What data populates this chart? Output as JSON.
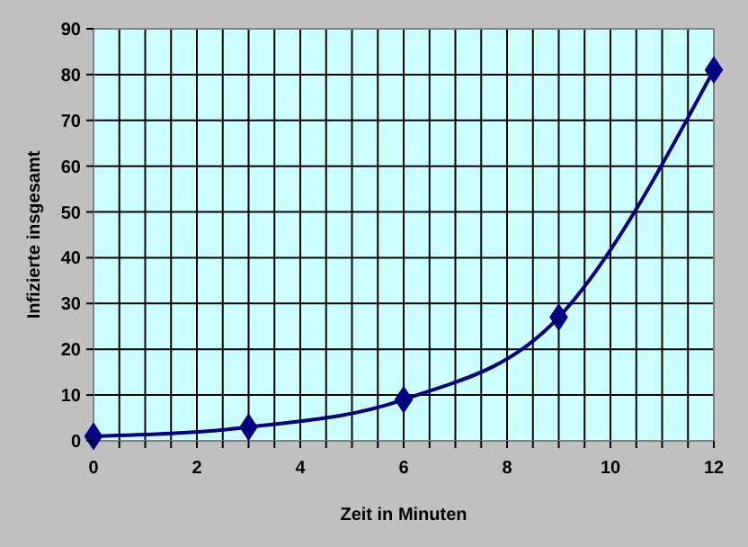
{
  "chart_data": {
    "type": "line",
    "xlabel": "Zeit in Minuten",
    "ylabel": "Infizierte insgesamt",
    "x": [
      0,
      3,
      6,
      9,
      12
    ],
    "series": [
      {
        "color": "#000080",
        "values": [
          1,
          3,
          9,
          27,
          81
        ]
      }
    ],
    "xlim": [
      0,
      12
    ],
    "ylim": [
      0,
      90
    ],
    "xticks": [
      0,
      {
        "value": 0.5,
        "label": null
      },
      {
        "value": 1,
        "label": null
      },
      {
        "value": 1.5,
        "label": null
      },
      2,
      {
        "value": 2.5,
        "label": null
      },
      {
        "value": 3,
        "label": null
      },
      {
        "value": 3.5,
        "label": null
      },
      4,
      {
        "value": 4.5,
        "label": null
      },
      {
        "value": 5,
        "label": null
      },
      {
        "value": 5.5,
        "label": null
      },
      6,
      {
        "value": 6.5,
        "label": null
      },
      {
        "value": 7,
        "label": null
      },
      {
        "value": 7.5,
        "label": null
      },
      8,
      {
        "value": 8.5,
        "label": null
      },
      {
        "value": 9,
        "label": null
      },
      {
        "value": 9.5,
        "label": null
      },
      10,
      {
        "value": 10.5,
        "label": null
      },
      {
        "value": 11,
        "label": null
      },
      {
        "value": 11.5,
        "label": null
      },
      12
    ],
    "yticks": [
      0,
      10,
      20,
      30,
      40,
      50,
      60,
      70,
      80,
      90
    ],
    "grid": true,
    "marker": "diamond",
    "line_style": "solid"
  }
}
